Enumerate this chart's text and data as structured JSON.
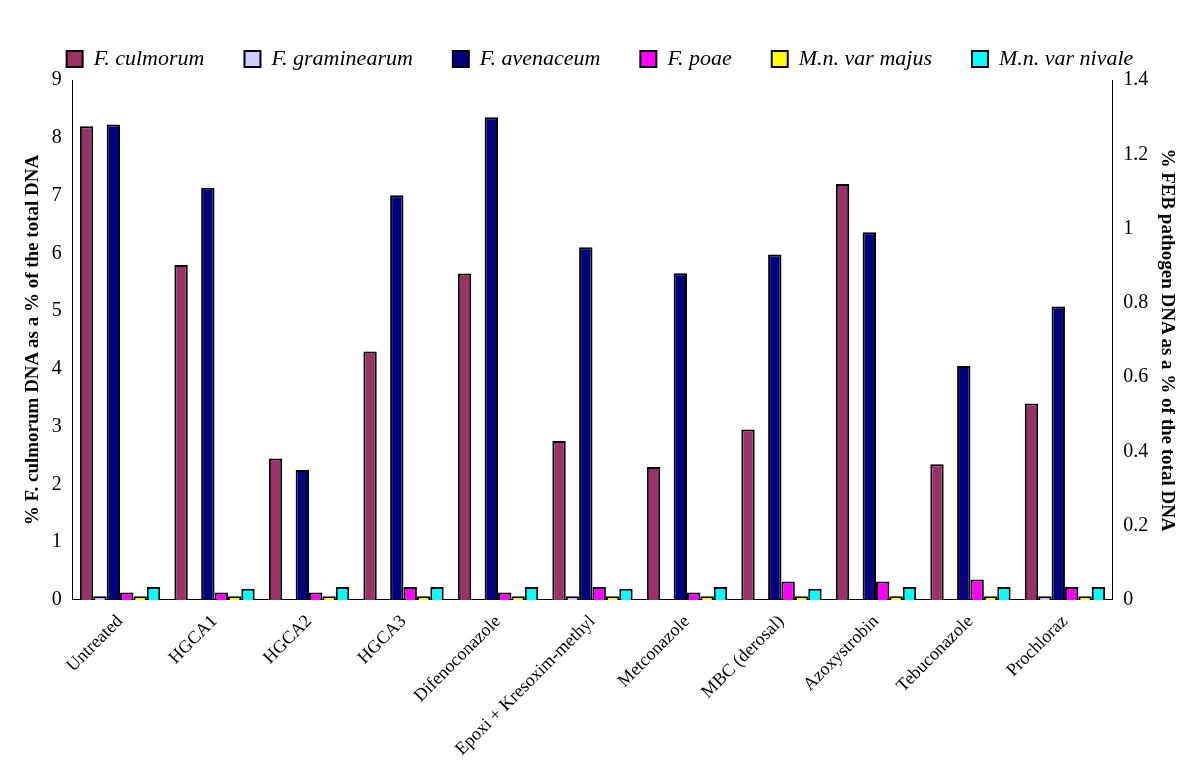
{
  "chart_data": {
    "type": "bar",
    "categories": [
      "Untreated",
      "HGCA1",
      "HGCA2",
      "HGCA3",
      "Difenoconazole",
      "Epoxi + Kresoxim-methyl",
      "Metconazole",
      "MBC (derosal)",
      "Azoxystrobin",
      "Tebuconazole",
      "Prochloraz"
    ],
    "series": [
      {
        "name": "F. culmorum",
        "color": "#993366",
        "values": [
          8.2,
          5.8,
          2.45,
          4.3,
          5.65,
          2.75,
          2.3,
          2.95,
          7.2,
          2.35,
          3.4
        ]
      },
      {
        "name": "F. graminearum",
        "color": "#ccccff",
        "axis": "y2",
        "values": [
          0.01,
          0,
          0,
          0,
          0,
          0.01,
          0,
          0,
          0,
          0,
          0.01
        ]
      },
      {
        "name": "F. avenaceum",
        "color": "#000080",
        "axis": "y2",
        "values": [
          1.28,
          1.11,
          0.35,
          1.09,
          1.3,
          0.95,
          0.88,
          0.93,
          0.99,
          0.63,
          0.79
        ]
      },
      {
        "name": "F. poae",
        "color": "#ff00ff",
        "axis": "y2",
        "values": [
          0.02,
          0.02,
          0.02,
          0.035,
          0.02,
          0.035,
          0.02,
          0.05,
          0.05,
          0.055,
          0.035
        ]
      },
      {
        "name": "M.n. var majus",
        "color": "#ffff00",
        "axis": "y2",
        "values": [
          0.01,
          0.01,
          0.01,
          0.01,
          0.01,
          0.01,
          0.01,
          0.01,
          0.01,
          0.01,
          0.01
        ]
      },
      {
        "name": "M.n. var nivale",
        "color": "#00ffff",
        "axis": "y2",
        "values": [
          0.035,
          0.03,
          0.035,
          0.035,
          0.035,
          0.03,
          0.035,
          0.03,
          0.035,
          0.035,
          0.035
        ]
      }
    ],
    "ylabel": "% F. culmorum DNA as a % of the total DNA",
    "y2label": "% FEB pathogen DNA as a % of the total DNA",
    "ylim": [
      0,
      9
    ],
    "yticks": [
      0,
      1,
      2,
      3,
      4,
      5,
      6,
      7,
      8,
      9
    ],
    "y2lim": [
      0,
      1.4
    ],
    "y2ticks": [
      0,
      0.2,
      0.4,
      0.6,
      0.8,
      1,
      1.2,
      1.4
    ],
    "grid": false,
    "legend": "top"
  }
}
